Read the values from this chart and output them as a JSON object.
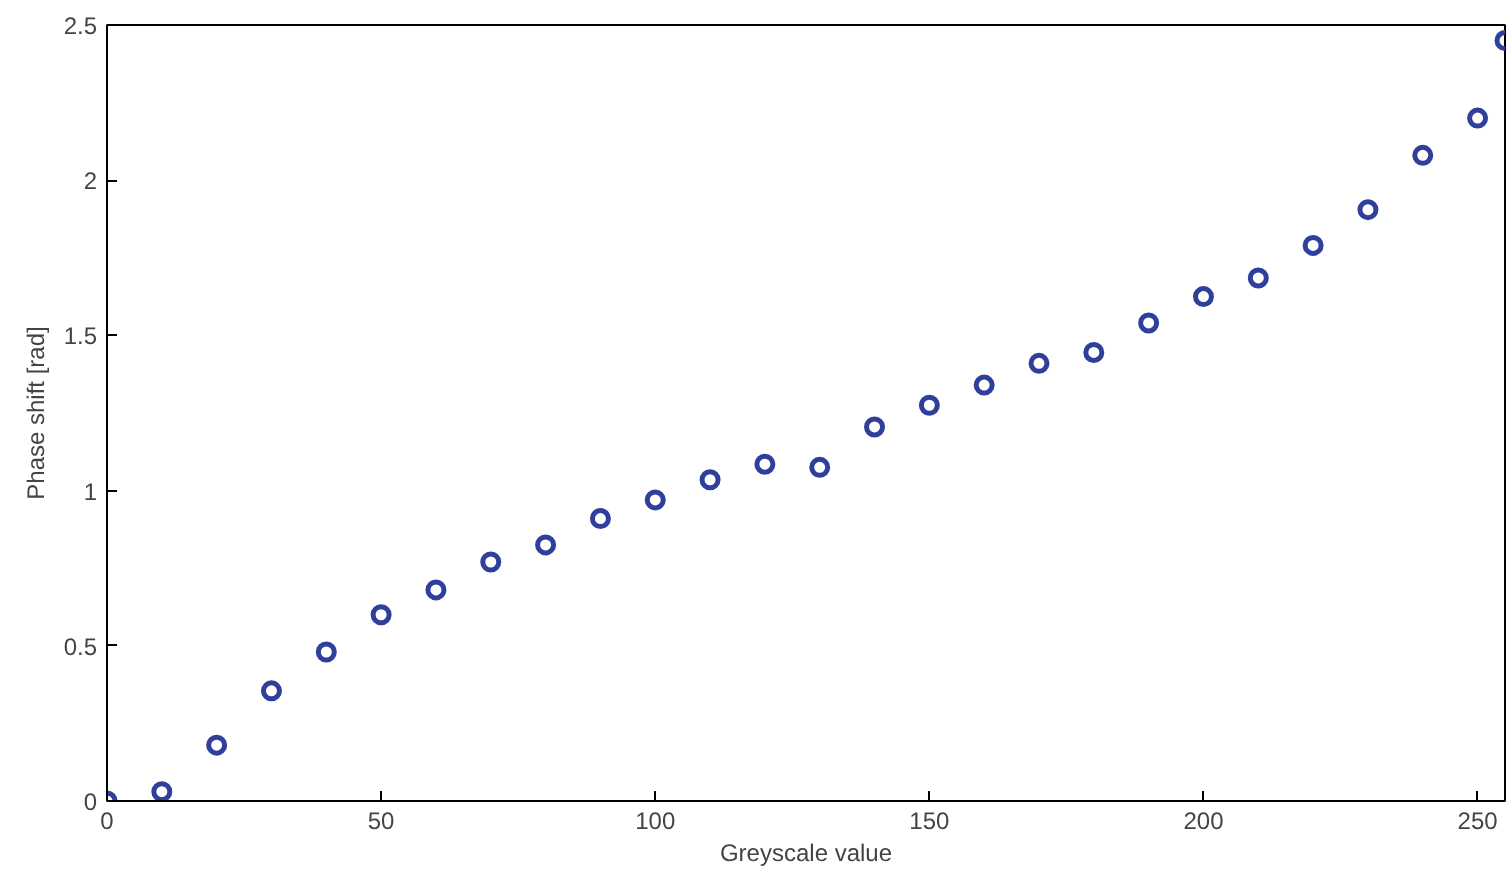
{
  "chart_data": {
    "type": "scatter",
    "xlabel": "Greyscale value",
    "ylabel": "Phase shift [rad]",
    "x": [
      0,
      10,
      20,
      30,
      40,
      50,
      60,
      70,
      80,
      90,
      100,
      110,
      120,
      130,
      140,
      150,
      160,
      170,
      180,
      190,
      200,
      210,
      220,
      230,
      240,
      250,
      255
    ],
    "series": [
      {
        "color": "#2e3f9c",
        "values": [
          0,
          0.03,
          0.18,
          0.355,
          0.48,
          0.6,
          0.68,
          0.77,
          0.825,
          0.91,
          0.97,
          1.035,
          1.085,
          1.075,
          1.205,
          1.275,
          1.34,
          1.41,
          1.445,
          1.54,
          1.625,
          1.685,
          1.79,
          1.905,
          2.08,
          2.2,
          2.45
        ]
      }
    ],
    "xlim": [
      0,
      255
    ],
    "ylim": [
      0,
      2.5
    ],
    "xticks": [
      0,
      50,
      100,
      150,
      200,
      250
    ],
    "yticks": [
      0,
      0.5,
      1,
      1.5,
      2,
      2.5
    ],
    "grid": false,
    "marker": "circle"
  }
}
